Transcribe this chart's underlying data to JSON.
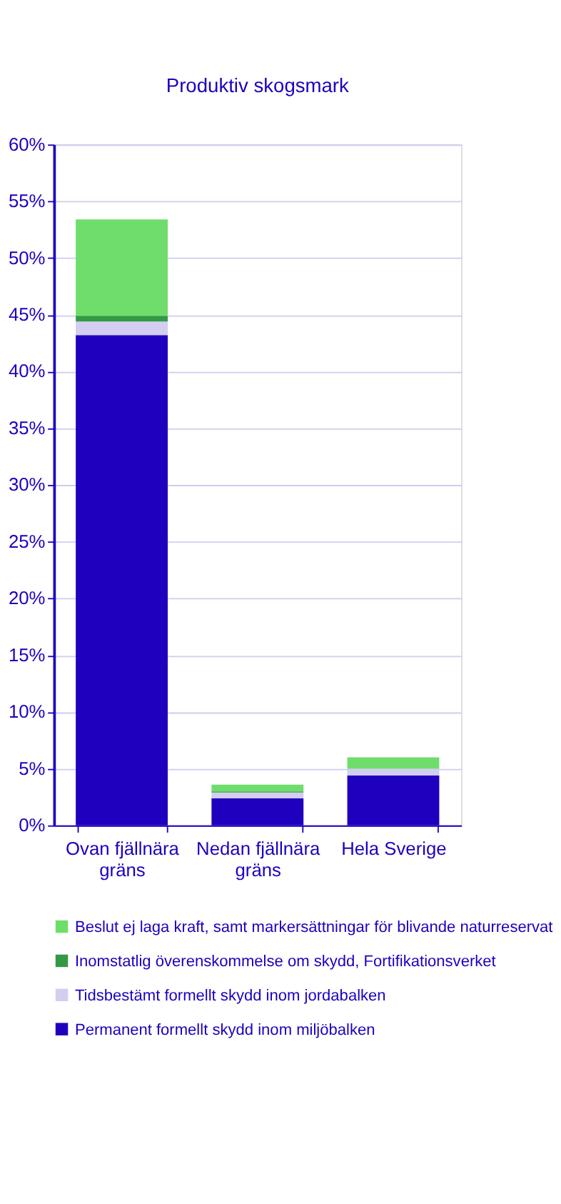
{
  "chart_data": {
    "type": "bar",
    "stacked": true,
    "title": "Produktiv skogsmark",
    "categories": [
      "Ovan fjällnära gräns",
      "Nedan fjällnära gräns",
      "Hela Sverige"
    ],
    "series": [
      {
        "name": "Permanent formellt skydd inom miljöbalken",
        "color": "#1e00be",
        "values": [
          43.2,
          2.4,
          4.4
        ]
      },
      {
        "name": "Tidsbestämt formellt skydd inom jordabalken",
        "color": "#d3cdf0",
        "values": [
          1.2,
          0.5,
          0.6
        ]
      },
      {
        "name": "Inomstatlig överenskommelse om skydd, Fortifikationsverket",
        "color": "#339944",
        "values": [
          0.5,
          0.1,
          0.0
        ]
      },
      {
        "name": "Beslut ej laga kraft, samt markersättningar för blivande naturreservat",
        "color": "#6fdd6b",
        "values": [
          8.5,
          0.6,
          1.0
        ]
      }
    ],
    "ylim": [
      0,
      60
    ],
    "yticks": [
      {
        "value": 0,
        "label": "0%"
      },
      {
        "value": 5,
        "label": "5%"
      },
      {
        "value": 10,
        "label": "10%"
      },
      {
        "value": 15,
        "label": "15%"
      },
      {
        "value": 20,
        "label": "20%"
      },
      {
        "value": 25,
        "label": "25%"
      },
      {
        "value": 30,
        "label": "30%"
      },
      {
        "value": 35,
        "label": "35%"
      },
      {
        "value": 40,
        "label": "40%"
      },
      {
        "value": 45,
        "label": "45%"
      },
      {
        "value": 50,
        "label": "50%"
      },
      {
        "value": 55,
        "label": "55%"
      },
      {
        "value": 60,
        "label": "60%"
      }
    ],
    "grid": "y",
    "legend": "bottom"
  }
}
